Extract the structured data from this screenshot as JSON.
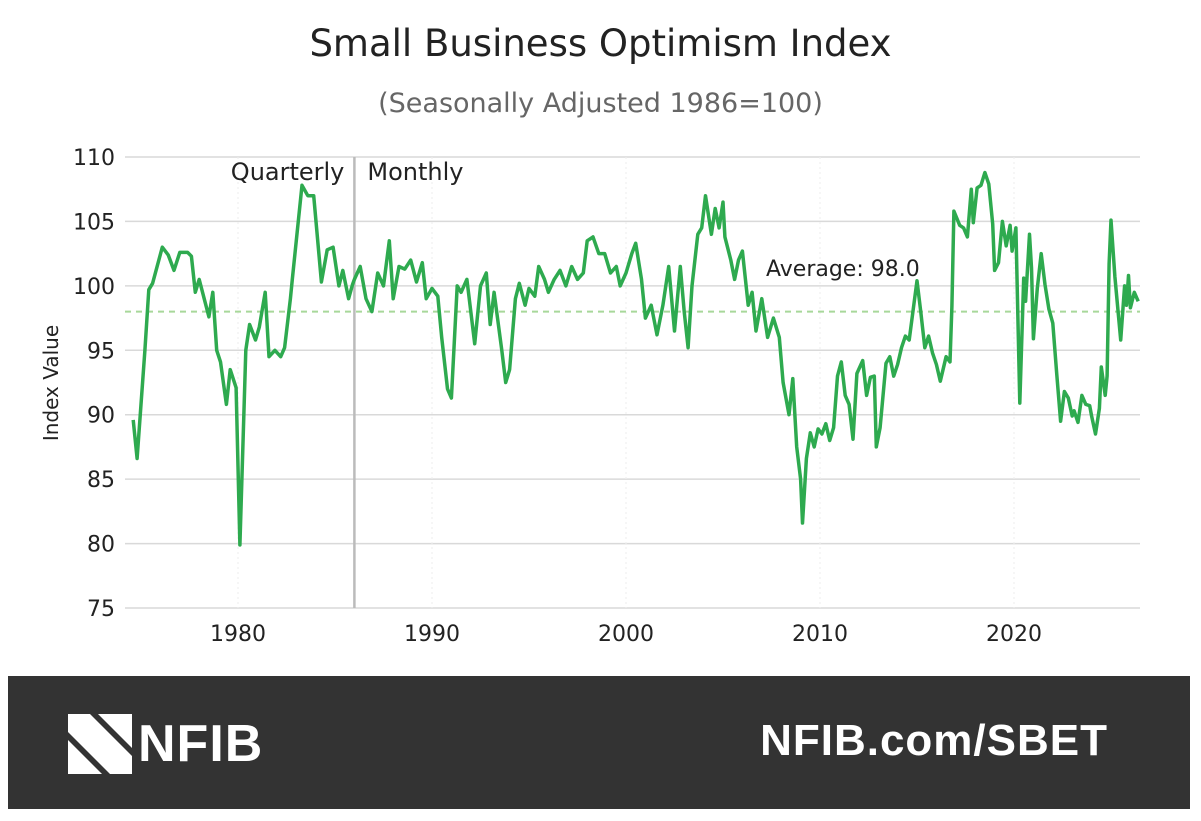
{
  "chart_data": {
    "type": "line",
    "title": "Small Business Optimism Index",
    "subtitle": "(Seasonally Adjusted 1986=100)",
    "xlabel": "",
    "ylabel": "Index Value",
    "xlim": [
      1974.2,
      2026.5
    ],
    "ylim": [
      75,
      110
    ],
    "yticks": [
      75,
      80,
      85,
      90,
      95,
      100,
      105,
      110
    ],
    "xticks": [
      1980,
      1990,
      2000,
      2010,
      2020
    ],
    "grid": "horizontal",
    "line_color": "#2eaa4f",
    "average": {
      "value": 98.0,
      "label": "Average: 98.0",
      "color": "#a8d89a"
    },
    "divider": {
      "x": 1986,
      "left_label": "Quarterly",
      "right_label": "Monthly",
      "color": "#bbbbbb"
    },
    "series": [
      {
        "points": [
          [
            1974.6,
            89.6
          ],
          [
            1974.8,
            86.6
          ],
          [
            1975.2,
            95
          ],
          [
            1975.4,
            99.7
          ],
          [
            1975.6,
            100.2
          ],
          [
            1976.1,
            103
          ],
          [
            1976.4,
            102.4
          ],
          [
            1976.7,
            101.2
          ],
          [
            1977.0,
            102.6
          ],
          [
            1977.4,
            102.6
          ],
          [
            1977.6,
            102.3
          ],
          [
            1977.8,
            99.5
          ],
          [
            1978.0,
            100.5
          ],
          [
            1978.5,
            97.6
          ],
          [
            1978.7,
            99.5
          ],
          [
            1978.9,
            95
          ],
          [
            1979.1,
            94.1
          ],
          [
            1979.4,
            90.8
          ],
          [
            1979.6,
            93.5
          ],
          [
            1979.9,
            92.1
          ],
          [
            1980.1,
            79.9
          ],
          [
            1980.4,
            95
          ],
          [
            1980.6,
            97
          ],
          [
            1980.9,
            95.8
          ],
          [
            1981.1,
            96.8
          ],
          [
            1981.4,
            99.5
          ],
          [
            1981.6,
            94.5
          ],
          [
            1981.9,
            95
          ],
          [
            1982.2,
            94.5
          ],
          [
            1982.4,
            95.2
          ],
          [
            1982.7,
            99
          ],
          [
            1982.8,
            100.5
          ],
          [
            1983.3,
            107.8
          ],
          [
            1983.6,
            107
          ],
          [
            1983.9,
            107
          ],
          [
            1984.3,
            100.3
          ],
          [
            1984.6,
            102.8
          ],
          [
            1984.9,
            103
          ],
          [
            1985.2,
            100
          ],
          [
            1985.4,
            101.2
          ],
          [
            1985.7,
            99
          ],
          [
            1985.9,
            100.1
          ],
          [
            1986.0,
            100.5
          ],
          [
            1986.3,
            101.5
          ],
          [
            1986.6,
            99
          ],
          [
            1986.9,
            98
          ],
          [
            1987.2,
            101
          ],
          [
            1987.5,
            100
          ],
          [
            1987.8,
            103.5
          ],
          [
            1988.0,
            99
          ],
          [
            1988.3,
            101.5
          ],
          [
            1988.6,
            101.3
          ],
          [
            1988.9,
            102
          ],
          [
            1989.2,
            100.3
          ],
          [
            1989.5,
            101.8
          ],
          [
            1989.7,
            99
          ],
          [
            1990.0,
            99.8
          ],
          [
            1990.3,
            99.2
          ],
          [
            1990.5,
            96
          ],
          [
            1990.8,
            92
          ],
          [
            1991.0,
            91.3
          ],
          [
            1991.3,
            100
          ],
          [
            1991.5,
            99.5
          ],
          [
            1991.8,
            100.5
          ],
          [
            1992.0,
            98
          ],
          [
            1992.2,
            95.5
          ],
          [
            1992.5,
            100
          ],
          [
            1992.8,
            101
          ],
          [
            1993.0,
            97
          ],
          [
            1993.2,
            99.5
          ],
          [
            1993.6,
            95
          ],
          [
            1993.8,
            92.5
          ],
          [
            1994.0,
            93.5
          ],
          [
            1994.3,
            99
          ],
          [
            1994.5,
            100.2
          ],
          [
            1994.8,
            98.5
          ],
          [
            1995.0,
            99.8
          ],
          [
            1995.3,
            99.2
          ],
          [
            1995.5,
            101.5
          ],
          [
            1995.8,
            100.5
          ],
          [
            1996.0,
            99.5
          ],
          [
            1996.3,
            100.5
          ],
          [
            1996.6,
            101.2
          ],
          [
            1996.9,
            100
          ],
          [
            1997.2,
            101.5
          ],
          [
            1997.5,
            100.5
          ],
          [
            1997.8,
            101
          ],
          [
            1998.0,
            103.5
          ],
          [
            1998.3,
            103.8
          ],
          [
            1998.6,
            102.5
          ],
          [
            1998.9,
            102.5
          ],
          [
            1999.2,
            101
          ],
          [
            1999.5,
            101.5
          ],
          [
            1999.7,
            100
          ],
          [
            2000.0,
            101
          ],
          [
            2000.3,
            102.5
          ],
          [
            2000.5,
            103.3
          ],
          [
            2000.8,
            100.5
          ],
          [
            2001.0,
            97.5
          ],
          [
            2001.3,
            98.5
          ],
          [
            2001.6,
            96.2
          ],
          [
            2001.9,
            98.5
          ],
          [
            2002.2,
            101.5
          ],
          [
            2002.5,
            96.5
          ],
          [
            2002.8,
            101.5
          ],
          [
            2003.0,
            98
          ],
          [
            2003.2,
            95.2
          ],
          [
            2003.4,
            100
          ],
          [
            2003.7,
            104
          ],
          [
            2003.9,
            104.5
          ],
          [
            2004.1,
            107
          ],
          [
            2004.4,
            104
          ],
          [
            2004.6,
            106
          ],
          [
            2004.8,
            104.5
          ],
          [
            2005.0,
            106.5
          ],
          [
            2005.1,
            103.8
          ],
          [
            2005.4,
            102
          ],
          [
            2005.6,
            100.5
          ],
          [
            2005.8,
            102
          ],
          [
            2006.0,
            102.7
          ],
          [
            2006.3,
            98.5
          ],
          [
            2006.5,
            99.5
          ],
          [
            2006.7,
            96.5
          ],
          [
            2007.0,
            99
          ],
          [
            2007.3,
            96
          ],
          [
            2007.6,
            97.5
          ],
          [
            2007.9,
            96
          ],
          [
            2008.1,
            92.5
          ],
          [
            2008.4,
            90
          ],
          [
            2008.6,
            92.8
          ],
          [
            2008.8,
            87.5
          ],
          [
            2009.0,
            85
          ],
          [
            2009.1,
            81.6
          ],
          [
            2009.3,
            86.6
          ],
          [
            2009.5,
            88.6
          ],
          [
            2009.7,
            87.5
          ],
          [
            2009.9,
            88.9
          ],
          [
            2010.1,
            88.5
          ],
          [
            2010.3,
            89.3
          ],
          [
            2010.5,
            88
          ],
          [
            2010.7,
            89
          ],
          [
            2010.9,
            93
          ],
          [
            2011.1,
            94.1
          ],
          [
            2011.3,
            91.5
          ],
          [
            2011.5,
            90.8
          ],
          [
            2011.7,
            88.1
          ],
          [
            2011.9,
            93.2
          ],
          [
            2012.2,
            94.2
          ],
          [
            2012.4,
            91.5
          ],
          [
            2012.6,
            92.9
          ],
          [
            2012.8,
            93
          ],
          [
            2012.9,
            87.5
          ],
          [
            2013.1,
            89
          ],
          [
            2013.4,
            94
          ],
          [
            2013.6,
            94.5
          ],
          [
            2013.8,
            93
          ],
          [
            2014.0,
            93.9
          ],
          [
            2014.2,
            95.2
          ],
          [
            2014.4,
            96.1
          ],
          [
            2014.6,
            95.8
          ],
          [
            2014.8,
            98.1
          ],
          [
            2015.0,
            100.4
          ],
          [
            2015.2,
            97.9
          ],
          [
            2015.4,
            95.2
          ],
          [
            2015.6,
            96.1
          ],
          [
            2015.8,
            94.8
          ],
          [
            2016.0,
            93.9
          ],
          [
            2016.2,
            92.6
          ],
          [
            2016.5,
            94.5
          ],
          [
            2016.7,
            94.1
          ],
          [
            2016.8,
            98.4
          ],
          [
            2016.9,
            105.8
          ],
          [
            2017.2,
            104.7
          ],
          [
            2017.4,
            104.5
          ],
          [
            2017.6,
            103.8
          ],
          [
            2017.8,
            107.5
          ],
          [
            2017.9,
            104.9
          ],
          [
            2018.1,
            107.6
          ],
          [
            2018.3,
            107.8
          ],
          [
            2018.5,
            108.8
          ],
          [
            2018.7,
            107.9
          ],
          [
            2018.9,
            104.8
          ],
          [
            2019.0,
            101.2
          ],
          [
            2019.2,
            101.8
          ],
          [
            2019.4,
            105
          ],
          [
            2019.6,
            103.1
          ],
          [
            2019.8,
            104.7
          ],
          [
            2019.9,
            102.7
          ],
          [
            2020.1,
            104.5
          ],
          [
            2020.3,
            90.9
          ],
          [
            2020.5,
            100.6
          ],
          [
            2020.6,
            98.8
          ],
          [
            2020.8,
            104
          ],
          [
            2020.9,
            101.4
          ],
          [
            2021.0,
            95.9
          ],
          [
            2021.2,
            99.8
          ],
          [
            2021.4,
            102.5
          ],
          [
            2021.6,
            100.1
          ],
          [
            2021.8,
            98.2
          ],
          [
            2022.0,
            97.1
          ],
          [
            2022.2,
            93.2
          ],
          [
            2022.4,
            89.5
          ],
          [
            2022.6,
            91.8
          ],
          [
            2022.8,
            91.3
          ],
          [
            2023.0,
            89.9
          ],
          [
            2023.1,
            90.3
          ],
          [
            2023.3,
            89.4
          ],
          [
            2023.5,
            91.5
          ],
          [
            2023.7,
            90.8
          ],
          [
            2023.9,
            90.7
          ],
          [
            2024.0,
            89.9
          ],
          [
            2024.2,
            88.5
          ],
          [
            2024.4,
            90.5
          ],
          [
            2024.5,
            93.7
          ],
          [
            2024.7,
            91.5
          ],
          [
            2024.8,
            93
          ],
          [
            2024.9,
            101.7
          ],
          [
            2025.0,
            105.1
          ],
          [
            2025.2,
            100.7
          ],
          [
            2025.4,
            97.4
          ],
          [
            2025.5,
            95.8
          ],
          [
            2025.7,
            100
          ],
          [
            2025.8,
            98.5
          ],
          [
            2025.9,
            100.8
          ],
          [
            2026.0,
            98.3
          ],
          [
            2026.2,
            99.5
          ],
          [
            2026.4,
            98.8
          ]
        ]
      }
    ]
  },
  "footer": {
    "logo_text": "NFIB",
    "url": "NFIB.com/SBET",
    "background": "#333333"
  }
}
